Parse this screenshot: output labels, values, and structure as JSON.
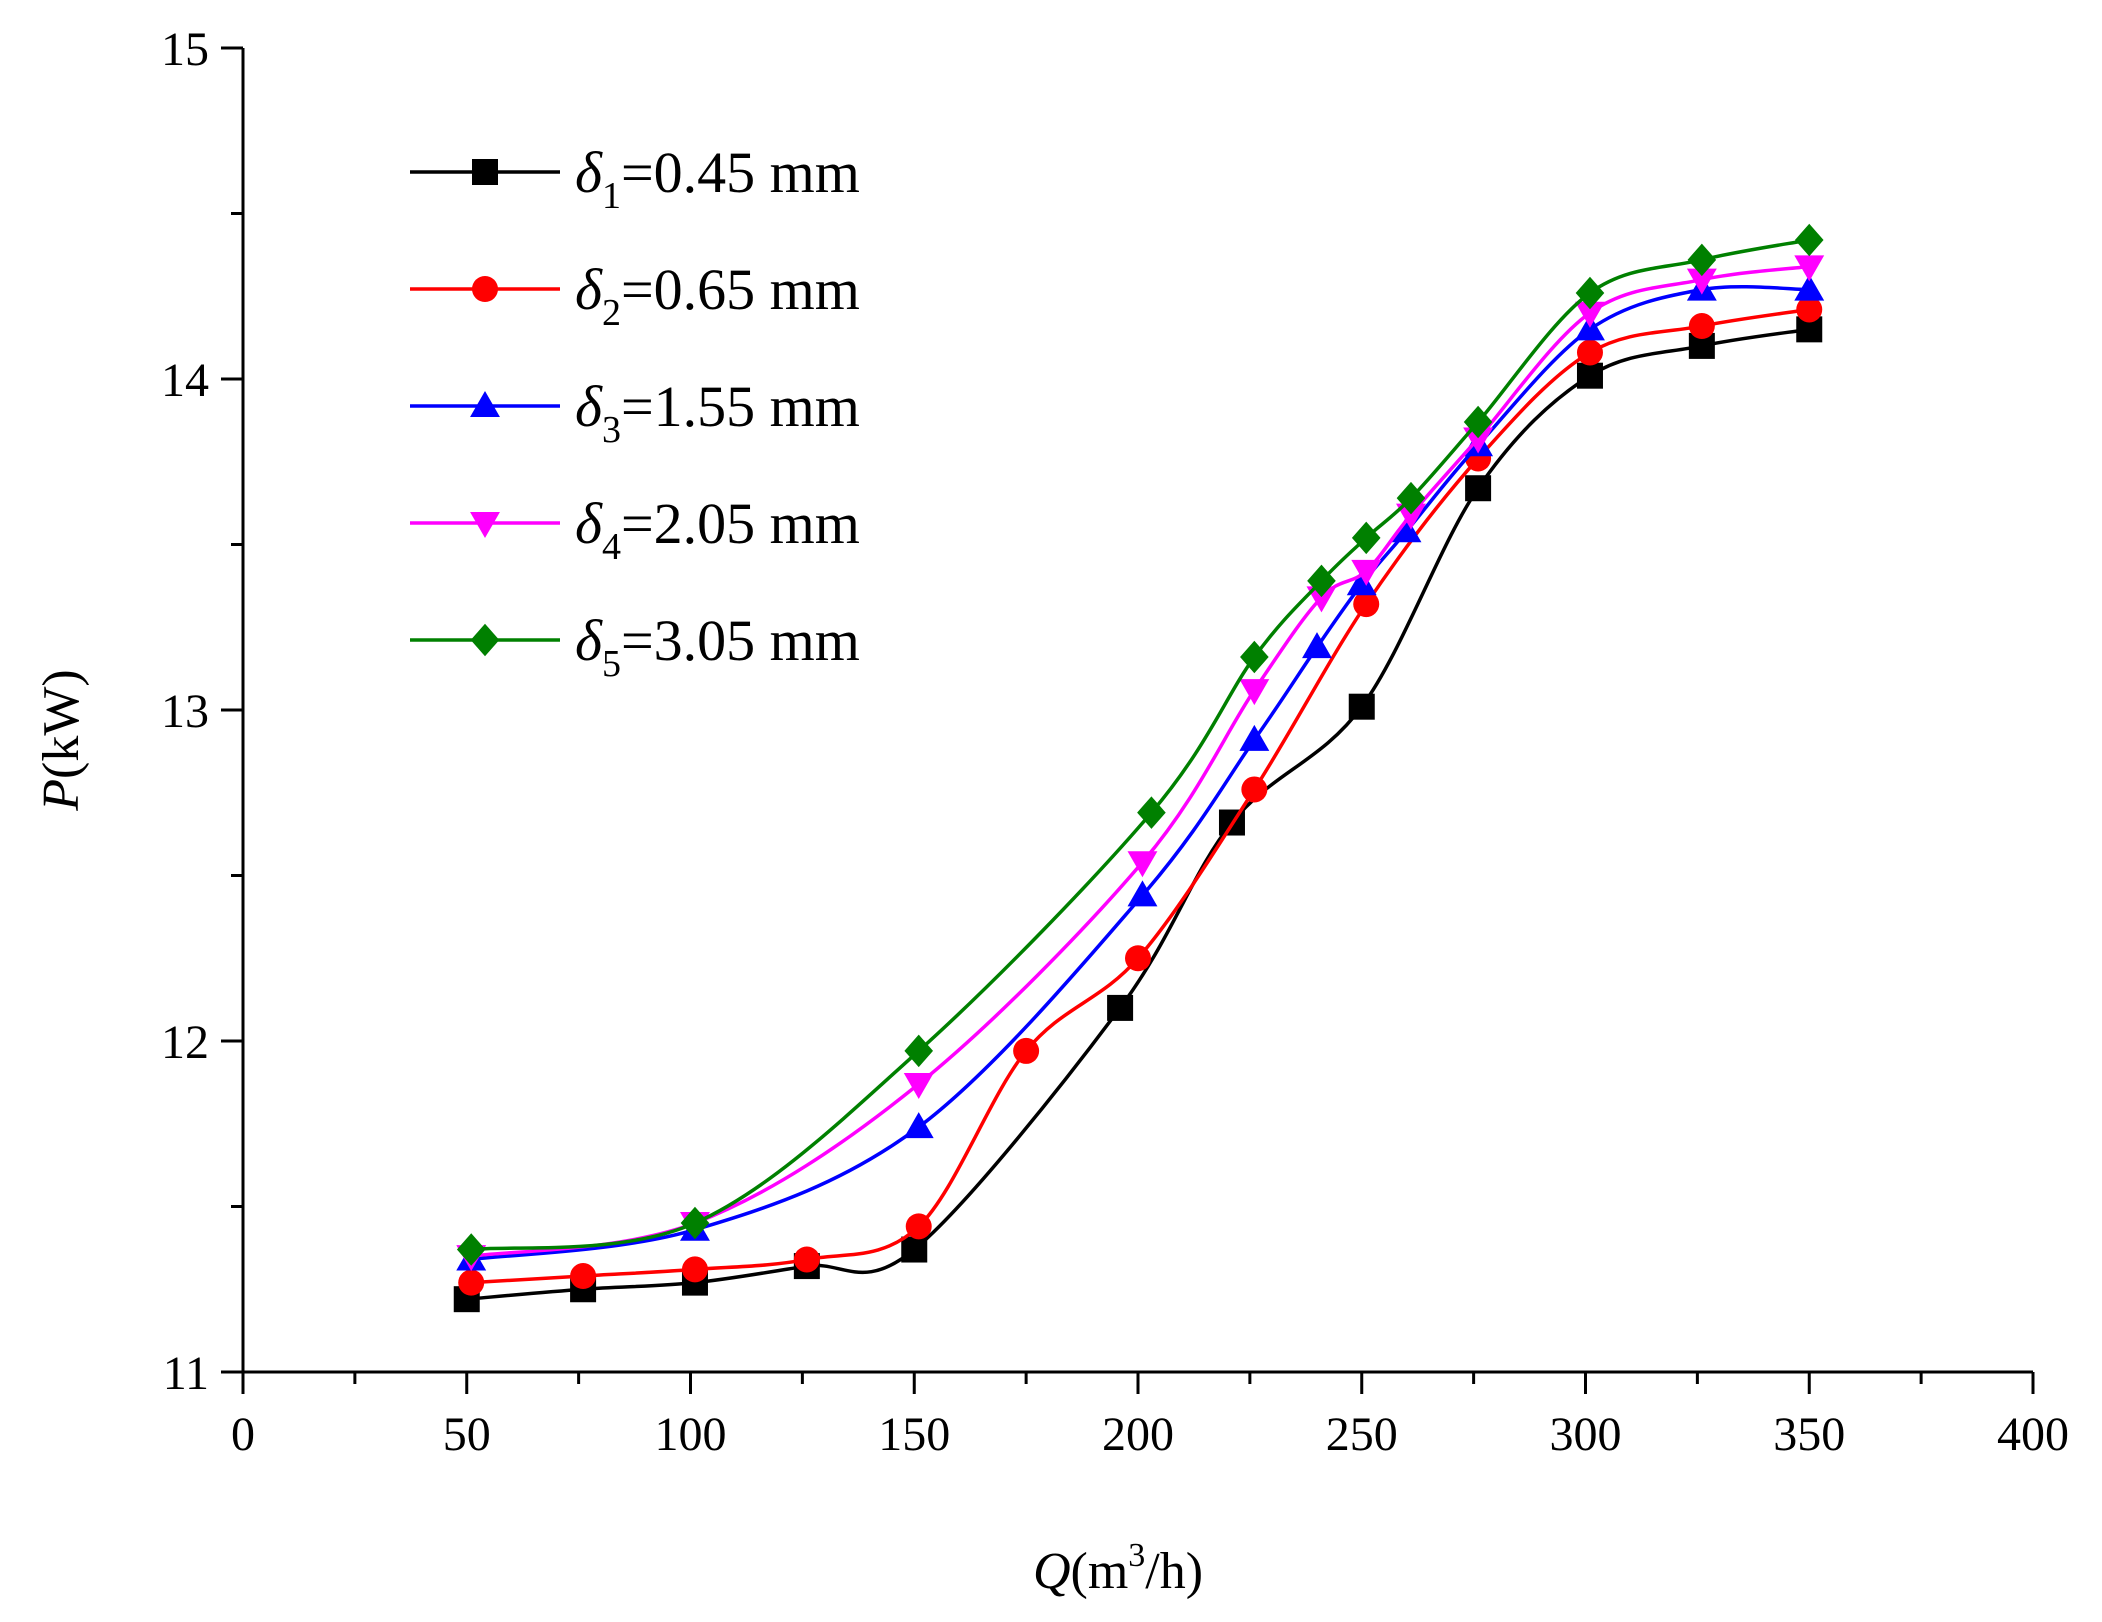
{
  "chart_data": {
    "type": "line",
    "title": "",
    "xlabel": {
      "var": "Q",
      "unit_prefix": "(m",
      "unit_sup": "3",
      "unit_suffix": "/h)"
    },
    "ylabel": {
      "var": "P",
      "unit": "(kW)"
    },
    "xlim": [
      0,
      400
    ],
    "ylim": [
      11,
      15
    ],
    "xticks": [
      0,
      50,
      100,
      150,
      200,
      250,
      300,
      350,
      400
    ],
    "xtick_labels": [
      "0",
      "50",
      "100",
      "150",
      "200",
      "250",
      "300",
      "350",
      "400"
    ],
    "yticks": [
      11,
      12,
      13,
      14,
      15
    ],
    "ytick_labels": [
      "11",
      "12",
      "13",
      "14",
      "15"
    ],
    "grid": false,
    "legend_position": "top-left",
    "series": [
      {
        "name": "δ1=0.45 mm",
        "symbol": "δ",
        "sub": "1",
        "suffix": "=0.45 mm",
        "color": "#000000",
        "marker": "square",
        "points": [
          [
            50,
            11.22
          ],
          [
            76,
            11.25
          ],
          [
            101,
            11.27
          ],
          [
            126,
            11.32
          ],
          [
            150,
            11.37
          ],
          [
            196,
            12.1
          ],
          [
            221,
            12.66
          ],
          [
            250,
            13.01
          ],
          [
            276,
            13.67
          ],
          [
            301,
            14.01
          ],
          [
            326,
            14.1
          ],
          [
            350,
            14.15
          ]
        ]
      },
      {
        "name": "δ2=0.65 mm",
        "symbol": "δ",
        "sub": "2",
        "suffix": "=0.65 mm",
        "color": "#ff0000",
        "marker": "circle",
        "points": [
          [
            51,
            11.27
          ],
          [
            76,
            11.29
          ],
          [
            101,
            11.31
          ],
          [
            126,
            11.34
          ],
          [
            151,
            11.44
          ],
          [
            175,
            11.97
          ],
          [
            200,
            12.25
          ],
          [
            226,
            12.76
          ],
          [
            251,
            13.32
          ],
          [
            276,
            13.76
          ],
          [
            301,
            14.08
          ],
          [
            326,
            14.16
          ],
          [
            350,
            14.21
          ]
        ]
      },
      {
        "name": "δ3=1.55 mm",
        "symbol": "δ",
        "sub": "3",
        "suffix": "=1.55 mm",
        "color": "#0000ff",
        "marker": "triangle-up",
        "points": [
          [
            51,
            11.34
          ],
          [
            101,
            11.43
          ],
          [
            151,
            11.74
          ],
          [
            201,
            12.44
          ],
          [
            226,
            12.91
          ],
          [
            240,
            13.19
          ],
          [
            250,
            13.38
          ],
          [
            260,
            13.54
          ],
          [
            276,
            13.8
          ],
          [
            301,
            14.15
          ],
          [
            326,
            14.27
          ],
          [
            350,
            14.27
          ]
        ]
      },
      {
        "name": "δ4=2.05 mm",
        "symbol": "δ",
        "sub": "4",
        "suffix": "=2.05 mm",
        "color": "#ff00ff",
        "marker": "triangle-down",
        "points": [
          [
            51,
            11.35
          ],
          [
            101,
            11.45
          ],
          [
            151,
            11.87
          ],
          [
            201,
            12.54
          ],
          [
            226,
            13.06
          ],
          [
            241,
            13.34
          ],
          [
            251,
            13.42
          ],
          [
            261,
            13.59
          ],
          [
            276,
            13.82
          ],
          [
            301,
            14.2
          ],
          [
            326,
            14.3
          ],
          [
            350,
            14.34
          ]
        ]
      },
      {
        "name": "δ5=3.05 mm",
        "symbol": "δ",
        "sub": "5",
        "suffix": "=3.05 mm",
        "color": "#008000",
        "marker": "diamond",
        "points": [
          [
            51,
            11.37
          ],
          [
            101,
            11.45
          ],
          [
            151,
            11.97
          ],
          [
            203,
            12.69
          ],
          [
            226,
            13.16
          ],
          [
            241,
            13.39
          ],
          [
            251,
            13.52
          ],
          [
            261,
            13.64
          ],
          [
            276,
            13.87
          ],
          [
            301,
            14.26
          ],
          [
            326,
            14.36
          ],
          [
            350,
            14.42
          ]
        ]
      }
    ]
  }
}
